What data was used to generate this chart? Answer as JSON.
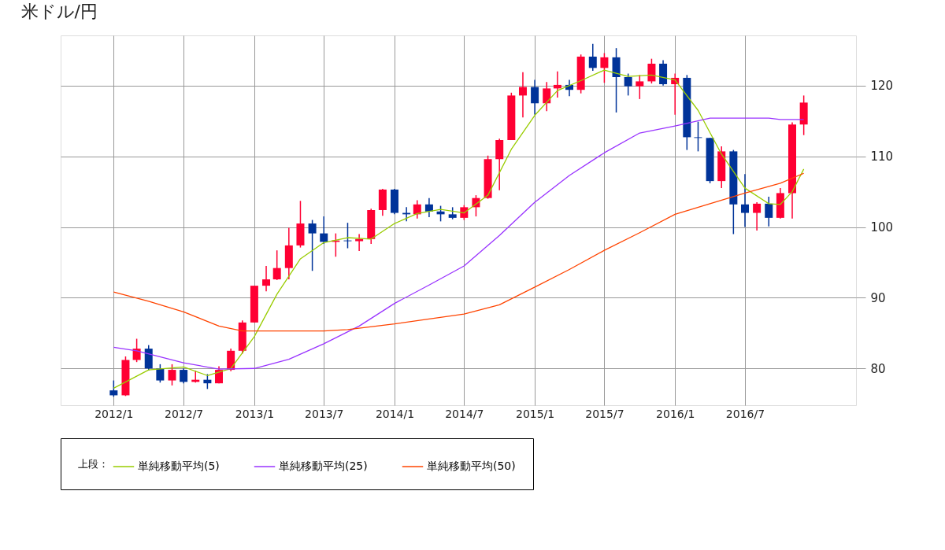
{
  "chart_data": {
    "type": "candlestick",
    "title": "米ドル/円",
    "x": [
      "2012-01",
      "2012-02",
      "2012-03",
      "2012-04",
      "2012-05",
      "2012-06",
      "2012-07",
      "2012-08",
      "2012-09",
      "2012-10",
      "2012-11",
      "2012-12",
      "2013-01",
      "2013-02",
      "2013-03",
      "2013-04",
      "2013-05",
      "2013-06",
      "2013-07",
      "2013-08",
      "2013-09",
      "2013-10",
      "2013-11",
      "2013-12",
      "2014-01",
      "2014-02",
      "2014-03",
      "2014-04",
      "2014-05",
      "2014-06",
      "2014-07",
      "2014-08",
      "2014-09",
      "2014-10",
      "2014-11",
      "2014-12",
      "2015-01",
      "2015-02",
      "2015-03",
      "2015-04",
      "2015-05",
      "2015-06",
      "2015-07",
      "2015-08",
      "2015-09",
      "2015-10",
      "2015-11",
      "2015-12",
      "2016-01",
      "2016-02",
      "2016-03",
      "2016-04",
      "2016-05",
      "2016-06",
      "2016-07",
      "2016-08",
      "2016-09",
      "2016-10",
      "2016-11",
      "2016-12"
    ],
    "ohlc": [
      [
        76.9,
        78.3,
        76.0,
        76.2
      ],
      [
        76.2,
        81.7,
        76.1,
        81.2
      ],
      [
        81.2,
        84.2,
        80.9,
        82.8
      ],
      [
        82.8,
        83.3,
        79.7,
        80.0
      ],
      [
        80.0,
        80.6,
        78.0,
        78.3
      ],
      [
        78.3,
        80.6,
        77.6,
        79.8
      ],
      [
        79.8,
        80.0,
        77.9,
        78.1
      ],
      [
        78.1,
        79.7,
        78.0,
        78.4
      ],
      [
        78.4,
        79.2,
        77.1,
        77.9
      ],
      [
        77.9,
        80.3,
        77.9,
        79.8
      ],
      [
        79.8,
        82.8,
        79.6,
        82.5
      ],
      [
        82.5,
        86.8,
        82.1,
        86.5
      ],
      [
        86.5,
        91.7,
        86.5,
        91.7
      ],
      [
        91.7,
        94.5,
        90.9,
        92.6
      ],
      [
        92.6,
        96.7,
        92.5,
        94.2
      ],
      [
        94.2,
        99.9,
        92.6,
        97.4
      ],
      [
        97.4,
        103.7,
        97.1,
        100.5
      ],
      [
        100.5,
        101.0,
        93.8,
        99.1
      ],
      [
        99.1,
        101.5,
        97.6,
        97.9
      ],
      [
        97.9,
        99.1,
        95.8,
        98.1
      ],
      [
        98.1,
        100.6,
        97.0,
        98.0
      ],
      [
        98.0,
        99.0,
        96.6,
        98.3
      ],
      [
        98.3,
        102.6,
        97.6,
        102.4
      ],
      [
        102.4,
        105.4,
        101.6,
        105.3
      ],
      [
        105.3,
        105.4,
        101.8,
        102.0
      ],
      [
        102.0,
        102.8,
        100.8,
        101.8
      ],
      [
        101.8,
        103.8,
        101.2,
        103.2
      ],
      [
        103.2,
        104.1,
        101.4,
        102.2
      ],
      [
        102.2,
        103.0,
        100.8,
        101.8
      ],
      [
        101.8,
        102.8,
        101.1,
        101.3
      ],
      [
        101.3,
        103.1,
        101.0,
        102.8
      ],
      [
        102.8,
        104.5,
        101.5,
        104.1
      ],
      [
        104.1,
        110.1,
        104.0,
        109.6
      ],
      [
        109.6,
        112.5,
        105.2,
        112.3
      ],
      [
        112.3,
        119.0,
        112.3,
        118.6
      ],
      [
        118.6,
        121.9,
        115.5,
        119.8
      ],
      [
        119.8,
        120.8,
        115.9,
        117.5
      ],
      [
        117.5,
        120.5,
        116.4,
        119.6
      ],
      [
        119.6,
        122.0,
        118.3,
        120.1
      ],
      [
        120.1,
        120.8,
        118.5,
        119.4
      ],
      [
        119.4,
        124.4,
        118.9,
        124.1
      ],
      [
        124.1,
        125.9,
        122.1,
        122.5
      ],
      [
        122.5,
        124.6,
        120.4,
        124.0
      ],
      [
        124.0,
        125.3,
        116.2,
        121.2
      ],
      [
        121.2,
        121.7,
        118.6,
        119.9
      ],
      [
        119.9,
        121.5,
        118.1,
        120.6
      ],
      [
        120.6,
        123.8,
        120.3,
        123.1
      ],
      [
        123.1,
        123.6,
        120.0,
        120.2
      ],
      [
        120.2,
        121.7,
        115.9,
        121.1
      ],
      [
        121.1,
        121.5,
        110.9,
        112.7
      ],
      [
        112.7,
        114.9,
        110.7,
        112.6
      ],
      [
        112.6,
        112.6,
        106.2,
        106.5
      ],
      [
        106.5,
        111.4,
        105.5,
        110.7
      ],
      [
        110.7,
        110.9,
        99.0,
        103.2
      ],
      [
        103.2,
        107.5,
        100.0,
        102.0
      ],
      [
        102.0,
        103.5,
        99.5,
        103.3
      ],
      [
        103.3,
        104.3,
        100.1,
        101.3
      ],
      [
        101.3,
        105.5,
        101.2,
        104.8
      ],
      [
        104.8,
        114.8,
        101.2,
        114.5
      ],
      [
        114.5,
        118.6,
        113.0,
        117.6
      ]
    ],
    "colors": [
      "#003399",
      "#ff0033",
      "#ff0033",
      "#003399",
      "#003399",
      "#ff0033",
      "#003399",
      "#ff0033",
      "#003399",
      "#ff0033",
      "#ff0033",
      "#ff0033",
      "#ff0033",
      "#ff0033",
      "#ff0033",
      "#ff0033",
      "#ff0033",
      "#003399",
      "#003399",
      "#ff0033",
      "#003399",
      "#ff0033",
      "#ff0033",
      "#ff0033",
      "#003399",
      "#003399",
      "#ff0033",
      "#003399",
      "#003399",
      "#003399",
      "#ff0033",
      "#ff0033",
      "#ff0033",
      "#ff0033",
      "#ff0033",
      "#ff0033",
      "#003399",
      "#ff0033",
      "#ff0033",
      "#003399",
      "#ff0033",
      "#003399",
      "#ff0033",
      "#003399",
      "#003399",
      "#ff0033",
      "#ff0033",
      "#003399",
      "#ff0033",
      "#003399",
      "#003399",
      "#003399",
      "#ff0033",
      "#003399",
      "#003399",
      "#ff0033",
      "#003399",
      "#ff0033",
      "#ff0033",
      "#ff0033"
    ],
    "series": [
      {
        "name": "単純移動平均(5)",
        "type": "line",
        "color": "#99cc00",
        "x": [
          "2012-01",
          "2012-04",
          "2012-07",
          "2012-09",
          "2012-11",
          "2013-01",
          "2013-03",
          "2013-05",
          "2013-07",
          "2013-09",
          "2013-11",
          "2014-01",
          "2014-03",
          "2014-05",
          "2014-07",
          "2014-09",
          "2014-11",
          "2015-01",
          "2015-03",
          "2015-05",
          "2015-07",
          "2015-09",
          "2015-11",
          "2016-01",
          "2016-03",
          "2016-05",
          "2016-07",
          "2016-09",
          "2016-10",
          "2016-11",
          "2016-12"
        ],
        "values": [
          77.2,
          79.8,
          80.2,
          79.0,
          80.0,
          84.5,
          90.5,
          95.5,
          97.8,
          98.5,
          98.3,
          100.5,
          101.9,
          102.5,
          102.0,
          104.5,
          111.0,
          115.8,
          119.3,
          120.7,
          122.2,
          121.3,
          121.5,
          120.8,
          116.5,
          110.3,
          105.5,
          103.3,
          103.2,
          105.0,
          108.2
        ]
      },
      {
        "name": "単純移動平均(25)",
        "type": "line",
        "color": "#9933ff",
        "x": [
          "2012-01",
          "2012-03",
          "2012-07",
          "2012-10",
          "2013-01",
          "2013-04",
          "2013-07",
          "2013-10",
          "2014-01",
          "2014-04",
          "2014-07",
          "2014-10",
          "2015-01",
          "2015-04",
          "2015-07",
          "2015-10",
          "2016-01",
          "2016-04",
          "2016-07",
          "2016-09",
          "2016-10",
          "2016-12"
        ],
        "values": [
          83.0,
          82.5,
          80.8,
          79.9,
          80.0,
          81.3,
          83.5,
          86.0,
          89.2,
          91.8,
          94.5,
          98.8,
          103.5,
          107.3,
          110.5,
          113.3,
          114.3,
          115.4,
          115.4,
          115.4,
          115.2,
          115.2
        ]
      },
      {
        "name": "単純移動平均(50)",
        "type": "line",
        "color": "#ff4400",
        "x": [
          "2012-01",
          "2012-04",
          "2012-07",
          "2012-10",
          "2012-12",
          "2013-01",
          "2013-07",
          "2013-09",
          "2014-01",
          "2014-04",
          "2014-07",
          "2014-10",
          "2015-01",
          "2015-04",
          "2015-07",
          "2015-10",
          "2016-01",
          "2016-04",
          "2016-07",
          "2016-10",
          "2016-12"
        ],
        "values": [
          90.8,
          89.5,
          88.0,
          86.0,
          85.3,
          85.3,
          85.3,
          85.5,
          86.3,
          87.0,
          87.7,
          89.0,
          91.5,
          94.0,
          96.7,
          99.2,
          101.8,
          103.3,
          104.8,
          106.2,
          107.6
        ]
      }
    ],
    "legend_title": "上段：",
    "legend": "bottom",
    "xlim": [
      "2011-08-16",
      "2017-04-16"
    ],
    "xticks": [
      {
        "value": "2012-01",
        "label": "2012/1"
      },
      {
        "value": "2012-07",
        "label": "2012/7"
      },
      {
        "value": "2013-01",
        "label": "2013/1"
      },
      {
        "value": "2013-07",
        "label": "2013/7"
      },
      {
        "value": "2014-01",
        "label": "2014/1"
      },
      {
        "value": "2014-07",
        "label": "2014/7"
      },
      {
        "value": "2015-01",
        "label": "2015/1"
      },
      {
        "value": "2015-07",
        "label": "2015/7"
      },
      {
        "value": "2016-01",
        "label": "2016/1"
      },
      {
        "value": "2016-07",
        "label": "2016/7"
      }
    ],
    "ylim": [
      74.8,
      127.1
    ],
    "yticks": [
      80,
      90,
      100,
      110,
      120
    ],
    "grid": true
  }
}
